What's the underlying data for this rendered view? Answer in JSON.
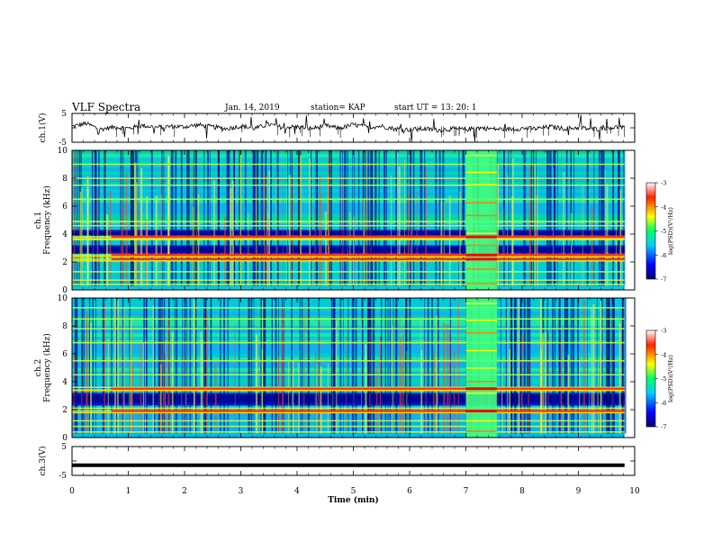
{
  "header": {
    "title": "VLF Spectra",
    "date": "Jan. 14, 2019",
    "station": "station= KAP",
    "start_ut": "start UT =  13: 20: 1"
  },
  "chart_data": [
    {
      "type": "line",
      "ylabel": "ch.1(V)",
      "ylim": [
        -5,
        5
      ],
      "yticks": [
        "5",
        "-5"
      ],
      "xlim": [
        0,
        10
      ],
      "series": [
        {
          "x": [
            0,
            0.25,
            0.5,
            0.75,
            1,
            1.25,
            1.5,
            1.75,
            2,
            2.25,
            2.5,
            2.75,
            3,
            3.25,
            3.5,
            3.75,
            4,
            4.25,
            4.5,
            4.75,
            5,
            5.25,
            5.5,
            5.75,
            6,
            6.25,
            6.5,
            6.75,
            7,
            7.25,
            7.5,
            7.75,
            8,
            8.25,
            8.5,
            8.75,
            9,
            9.25,
            9.5,
            9.75,
            9.82
          ],
          "y": [
            0.5,
            1.5,
            -0.5,
            0.3,
            -0.2,
            0.8,
            0.2,
            0.5,
            0.4,
            1.0,
            0.3,
            -0.3,
            0.6,
            -0.2,
            1.2,
            0.1,
            0.4,
            -0.3,
            0.8,
            -0.2,
            1.1,
            0.2,
            0.6,
            -0.4,
            -0.6,
            -0.3,
            -0.8,
            -0.4,
            -0.6,
            0.0,
            -0.4,
            -0.5,
            -0.2,
            -0.3,
            0.4,
            -0.3,
            0.1,
            -0.5,
            0.0,
            0.3,
            -0.1
          ]
        }
      ]
    },
    {
      "type": "heatmap",
      "ylabel": "ch.1\nFrequency (kHz)",
      "ylim": [
        0,
        10
      ],
      "yticks": [
        "0",
        "2",
        "4",
        "6",
        "8",
        "10"
      ],
      "xlim": [
        0,
        10
      ],
      "data_end": 9.82,
      "colorbar": {
        "label": "log(PSD)(V²/Hz)",
        "range": [
          -7,
          -3
        ],
        "ticks": [
          "-3",
          "-4",
          "-5",
          "-6",
          "-7"
        ]
      },
      "lines_khz": [
        0.4,
        0.7,
        1.3,
        2.2,
        2.5,
        3.6,
        3.8,
        4.6,
        4.9,
        6.5,
        7.5,
        8.0,
        9.0
      ],
      "strong_lines_khz": [
        2.2,
        2.5,
        3.8
      ],
      "dark_bands_khz": [
        [
          2.6,
          3.2
        ],
        [
          3.9,
          4.3
        ]
      ],
      "event": {
        "x": [
          7.0,
          7.55
        ]
      }
    },
    {
      "type": "heatmap",
      "ylabel": "ch.2\nFrequency (kHz)",
      "ylim": [
        0,
        10
      ],
      "yticks": [
        "0",
        "2",
        "4",
        "6",
        "8",
        "10"
      ],
      "xlim": [
        0,
        10
      ],
      "data_end": 9.82,
      "colorbar": {
        "label": "log(PSD)(V²/Hz)",
        "range": [
          -7,
          -3
        ],
        "ticks": [
          "-3",
          "-4",
          "-5",
          "-6",
          "-7"
        ]
      },
      "lines_khz": [
        0.4,
        0.8,
        1.2,
        1.9,
        2.1,
        3.4,
        3.6,
        4.5,
        5.5,
        6.8,
        7.8,
        8.5,
        9.3
      ],
      "strong_lines_khz": [
        3.5,
        1.9
      ],
      "dark_bands_khz": [
        [
          2.3,
          3.2
        ]
      ],
      "event": {
        "x": [
          7.0,
          7.55
        ]
      }
    },
    {
      "type": "line",
      "ylabel": "ch.3(V)",
      "ylim": [
        -5,
        5
      ],
      "yticks": [
        "5",
        "-5"
      ],
      "xlim": [
        0,
        10
      ],
      "xticks": [
        "0",
        "1",
        "2",
        "3",
        "4",
        "5",
        "6",
        "7",
        "8",
        "9",
        "10"
      ],
      "xlabel": "Time (min)",
      "series": [
        {
          "x": [
            0,
            9.82
          ],
          "y": [
            -1.5,
            -1.5
          ]
        }
      ]
    }
  ]
}
